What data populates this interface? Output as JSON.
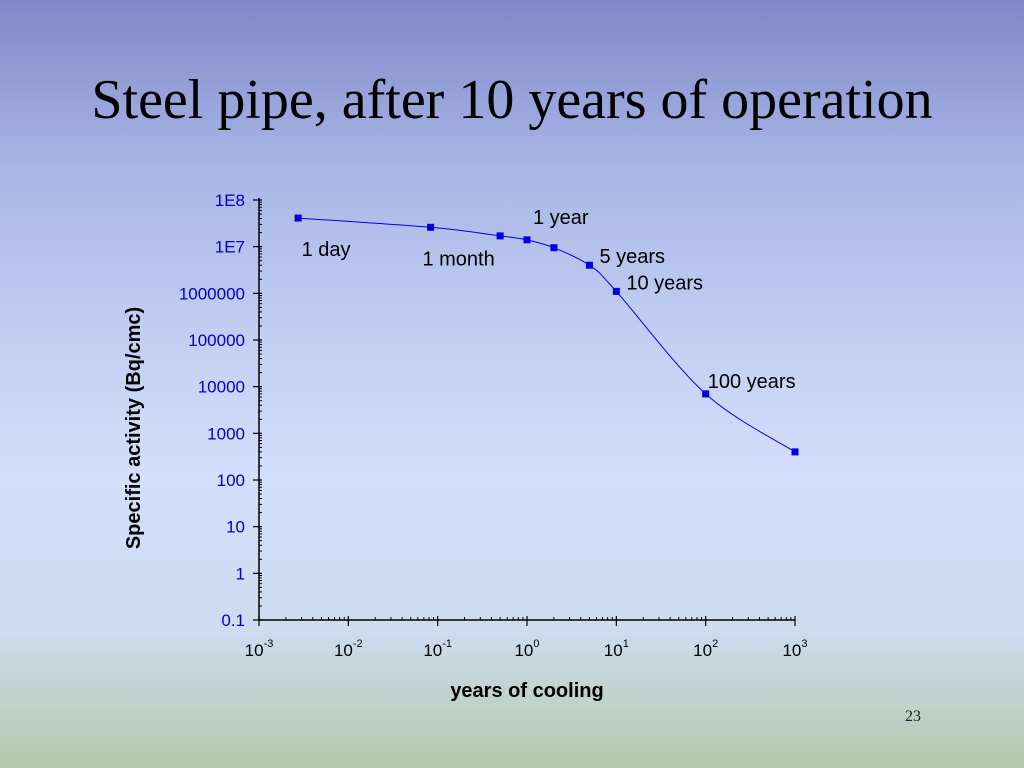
{
  "slide": {
    "title": "Steel pipe, after 10 years of operation",
    "page_number": "23"
  },
  "colors": {
    "series": "#0000dd",
    "y_tick_labels": "#0000cc",
    "text": "#000000"
  },
  "chart_data": {
    "type": "line",
    "title": "",
    "xlabel": "years of cooling",
    "ylabel": "Specific activity  (Bq/cmc)",
    "x_scale": "log",
    "y_scale": "log",
    "xlim": [
      0.001,
      1000
    ],
    "ylim": [
      0.1,
      100000000
    ],
    "grid": false,
    "x_ticks": [
      {
        "base": "10",
        "exp": "-3",
        "value": 0.001
      },
      {
        "base": "10",
        "exp": "-2",
        "value": 0.01
      },
      {
        "base": "10",
        "exp": "-1",
        "value": 0.1
      },
      {
        "base": "10",
        "exp": "0",
        "value": 1
      },
      {
        "base": "10",
        "exp": "1",
        "value": 10
      },
      {
        "base": "10",
        "exp": "2",
        "value": 100
      },
      {
        "base": "10",
        "exp": "3",
        "value": 1000
      }
    ],
    "y_ticks": [
      {
        "label": "1E8",
        "value": 100000000
      },
      {
        "label": "1E7",
        "value": 10000000
      },
      {
        "label": "1000000",
        "value": 1000000
      },
      {
        "label": "100000",
        "value": 100000
      },
      {
        "label": "10000",
        "value": 10000
      },
      {
        "label": "1000",
        "value": 1000
      },
      {
        "label": "100",
        "value": 100
      },
      {
        "label": "10",
        "value": 10
      },
      {
        "label": "1",
        "value": 1
      },
      {
        "label": "0.1",
        "value": 0.1
      }
    ],
    "series": [
      {
        "points": [
          {
            "x": 0.00274,
            "y": 41000000
          },
          {
            "x": 0.0833,
            "y": 26000000
          },
          {
            "x": 0.5,
            "y": 17000000
          },
          {
            "x": 1,
            "y": 14000000
          },
          {
            "x": 2,
            "y": 9500000
          },
          {
            "x": 5,
            "y": 4000000
          },
          {
            "x": 10,
            "y": 1100000
          },
          {
            "x": 100,
            "y": 7000
          },
          {
            "x": 1000,
            "y": 400
          }
        ]
      }
    ],
    "annotations": [
      {
        "text": "1 day",
        "x": 0.00274,
        "y": 41000000,
        "pos": "below"
      },
      {
        "text": "1 month",
        "x": 0.0833,
        "y": 26000000,
        "pos": "below"
      },
      {
        "text": "1 year",
        "x": 1,
        "y": 14000000,
        "pos": "above-right"
      },
      {
        "text": "5 years",
        "x": 5,
        "y": 4000000,
        "pos": "right"
      },
      {
        "text": "10 years",
        "x": 10,
        "y": 1100000,
        "pos": "right"
      },
      {
        "text": "100 years",
        "x": 100,
        "y": 7000,
        "pos": "above"
      }
    ]
  }
}
